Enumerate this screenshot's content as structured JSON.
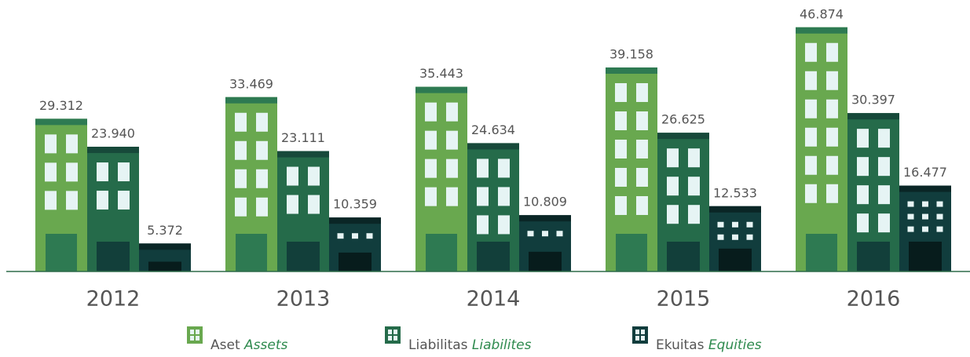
{
  "chart_data": {
    "type": "bar",
    "categories": [
      "2012",
      "2013",
      "2014",
      "2015",
      "2016"
    ],
    "series": [
      {
        "name": "Aset Assets",
        "color": "#69a84f",
        "values": [
          29312,
          33469,
          35443,
          39158,
          46874
        ],
        "value_labels": [
          "29.312",
          "33.469",
          "35.443",
          "39.158",
          "46.874"
        ]
      },
      {
        "name": "Liabilitas Liabilites",
        "color": "#256b4a",
        "values": [
          23940,
          23111,
          24634,
          26625,
          30397
        ],
        "value_labels": [
          "23.940",
          "23.111",
          "24.634",
          "26.625",
          "30.397"
        ]
      },
      {
        "name": "Ekuitas Equities",
        "color": "#113d3d",
        "values": [
          5372,
          10359,
          10809,
          12533,
          16477
        ],
        "value_labels": [
          "5.372",
          "10.359",
          "10.809",
          "12.533",
          "16.477"
        ]
      }
    ],
    "ylim": [
      0,
      50000
    ]
  }
}
